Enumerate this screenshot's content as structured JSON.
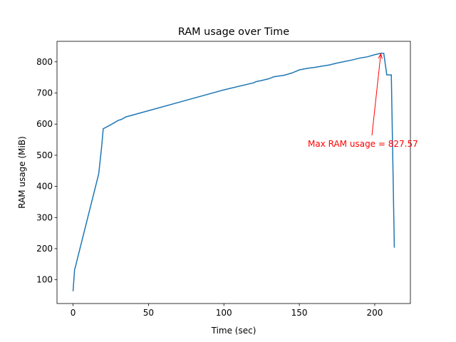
{
  "chart_data": {
    "type": "line",
    "title": "RAM usage over Time",
    "xlabel": "Time (sec)",
    "ylabel": "RAM usage (MiB)",
    "series": [
      {
        "color": "#1f77b4",
        "x": [
          0,
          1,
          2,
          3,
          17,
          19,
          20,
          25,
          30,
          32,
          35,
          50,
          100,
          120,
          121,
          125,
          130,
          133,
          140,
          145,
          150,
          155,
          160,
          170,
          175,
          185,
          190,
          195,
          200,
          204,
          206,
          208,
          211,
          213
        ],
        "values": [
          63,
          132,
          150,
          170,
          440,
          530,
          585,
          598,
          612,
          615,
          623,
          643,
          710,
          733,
          736,
          740,
          746,
          752,
          757,
          764,
          774,
          779,
          782,
          790,
          796,
          806,
          812,
          816,
          823,
          827.57,
          827,
          758,
          758,
          203
        ]
      }
    ],
    "annotation": {
      "text": "Max RAM usage = 827.57",
      "color": "red"
    },
    "xlim": [
      -10.65,
      223.65
    ],
    "ylim": [
      23.7,
      865.9
    ],
    "xticks": [
      0,
      50,
      100,
      150,
      200
    ],
    "yticks": [
      100,
      200,
      300,
      400,
      500,
      600,
      700,
      800
    ]
  }
}
